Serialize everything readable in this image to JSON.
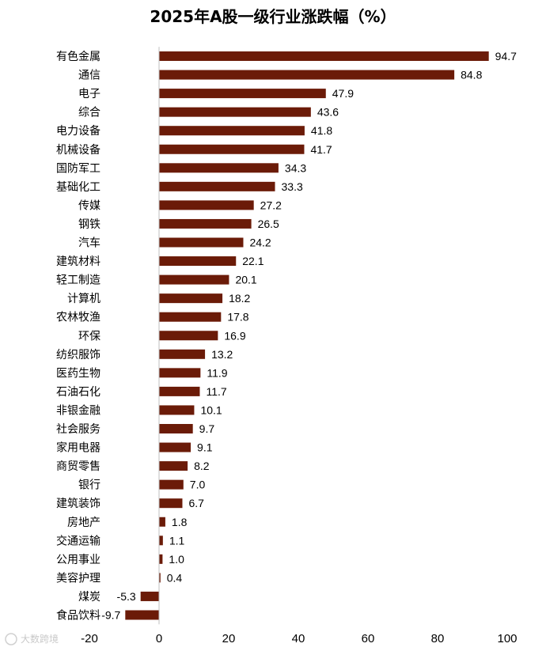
{
  "watermark": "大数跨境",
  "chart_data": {
    "type": "bar",
    "orientation": "horizontal",
    "title": "2025年A股一级行业涨跌幅（%）",
    "categories": [
      "有色金属",
      "通信",
      "电子",
      "综合",
      "电力设备",
      "机械设备",
      "国防军工",
      "基础化工",
      "传媒",
      "钢铁",
      "汽车",
      "建筑材料",
      "轻工制造",
      "计算机",
      "农林牧渔",
      "环保",
      "纺织服饰",
      "医药生物",
      "石油石化",
      "非银金融",
      "社会服务",
      "家用电器",
      "商贸零售",
      "银行",
      "建筑装饰",
      "房地产",
      "交通运输",
      "公用事业",
      "美容护理",
      "煤炭",
      "食品饮料"
    ],
    "values": [
      94.7,
      84.8,
      47.9,
      43.6,
      41.8,
      41.7,
      34.3,
      33.3,
      27.2,
      26.5,
      24.2,
      22.1,
      20.1,
      18.2,
      17.8,
      16.9,
      13.2,
      11.9,
      11.7,
      10.1,
      9.7,
      9.1,
      8.2,
      7.0,
      6.7,
      1.8,
      1.1,
      1.0,
      0.4,
      -5.3,
      -9.7
    ],
    "labels": [
      "94.7",
      "84.8",
      "47.9",
      "43.6",
      "41.8",
      "41.7",
      "34.3",
      "33.3",
      "27.2",
      "26.5",
      "24.2",
      "22.1",
      "20.1",
      "18.2",
      "17.8",
      "16.9",
      "13.2",
      "11.9",
      "11.7",
      "10.1",
      "9.7",
      "9.1",
      "8.2",
      "7.0",
      "6.7",
      "1.8",
      "1.1",
      "1.0",
      "0.4",
      "-5.3",
      "-9.7"
    ],
    "xlim": [
      -20,
      100
    ],
    "xticks": [
      -20,
      0,
      20,
      40,
      60,
      80,
      100
    ],
    "xlabel": "",
    "ylabel": "",
    "grid": false,
    "legend": "none",
    "bar_color": "#6b1b08"
  }
}
